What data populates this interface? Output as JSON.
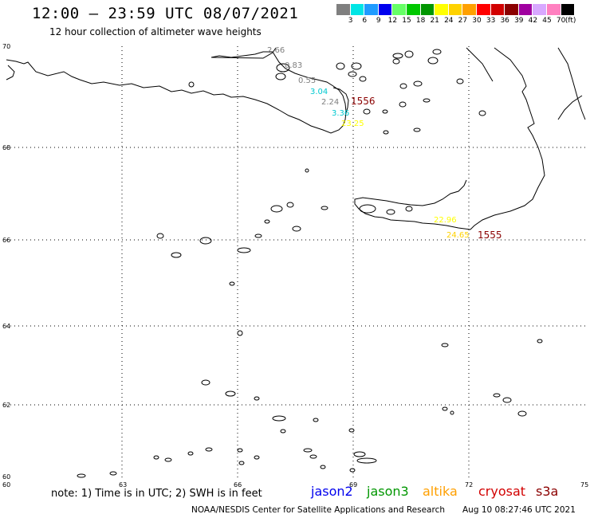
{
  "title": "12:00 – 23:59 UTC 08/07/2021",
  "subtitle": "12 hour collection of altimeter wave heights",
  "colorbar": {
    "colors": [
      "#7f7f7f",
      "#00e5e5",
      "#1e9bff",
      "#0000ee",
      "#66ff66",
      "#00c800",
      "#009600",
      "#ffff00",
      "#ffd200",
      "#ffa000",
      "#ff0000",
      "#d20000",
      "#8b0000",
      "#a000a0",
      "#d8a8ff",
      "#ff80c0",
      "#000000"
    ],
    "labels": [
      "3",
      "6",
      "9",
      "12",
      "15",
      "18",
      "21",
      "24",
      "27",
      "30",
      "33",
      "36",
      "39",
      "42",
      "45",
      "70",
      "(ft)"
    ]
  },
  "map": {
    "lat_labels": [
      "70",
      "68",
      "66",
      "64",
      "62",
      "60"
    ],
    "lon_labels": [
      "60",
      "63",
      "66",
      "69",
      "72",
      "75"
    ],
    "swh_labels": [
      {
        "text": "2.66",
        "color": "#7f7f7f"
      },
      {
        "text": "0.83",
        "color": "#7f7f7f"
      },
      {
        "text": "0.55",
        "color": "#7f7f7f"
      },
      {
        "text": "3.04",
        "color": "#00c8d0"
      },
      {
        "text": "2.24",
        "color": "#7f7f7f"
      },
      {
        "text": "3.36",
        "color": "#00c8d0"
      },
      {
        "text": "23.25",
        "color": "#ffff00"
      },
      {
        "text": "22.96",
        "color": "#ffff00"
      },
      {
        "text": "24.65",
        "color": "#ffd200"
      }
    ],
    "pass_labels": [
      {
        "text": "1556",
        "color": "#8b0000"
      },
      {
        "text": "1555",
        "color": "#8b0000"
      }
    ]
  },
  "footer": {
    "note": "note: 1) Time is in UTC; 2) SWH is in feet",
    "satellites": [
      {
        "name": "jason2",
        "color": "#0000ee"
      },
      {
        "name": "jason3",
        "color": "#009600"
      },
      {
        "name": "altika",
        "color": "#ffa000"
      },
      {
        "name": "cryosat",
        "color": "#d20000"
      },
      {
        "name": "s3a",
        "color": "#8b0000"
      }
    ],
    "credit": "NOAA/NESDIS Center for Satellite Applications and Research",
    "timestamp": "Aug 10 08:27:46 UTC 2021"
  }
}
